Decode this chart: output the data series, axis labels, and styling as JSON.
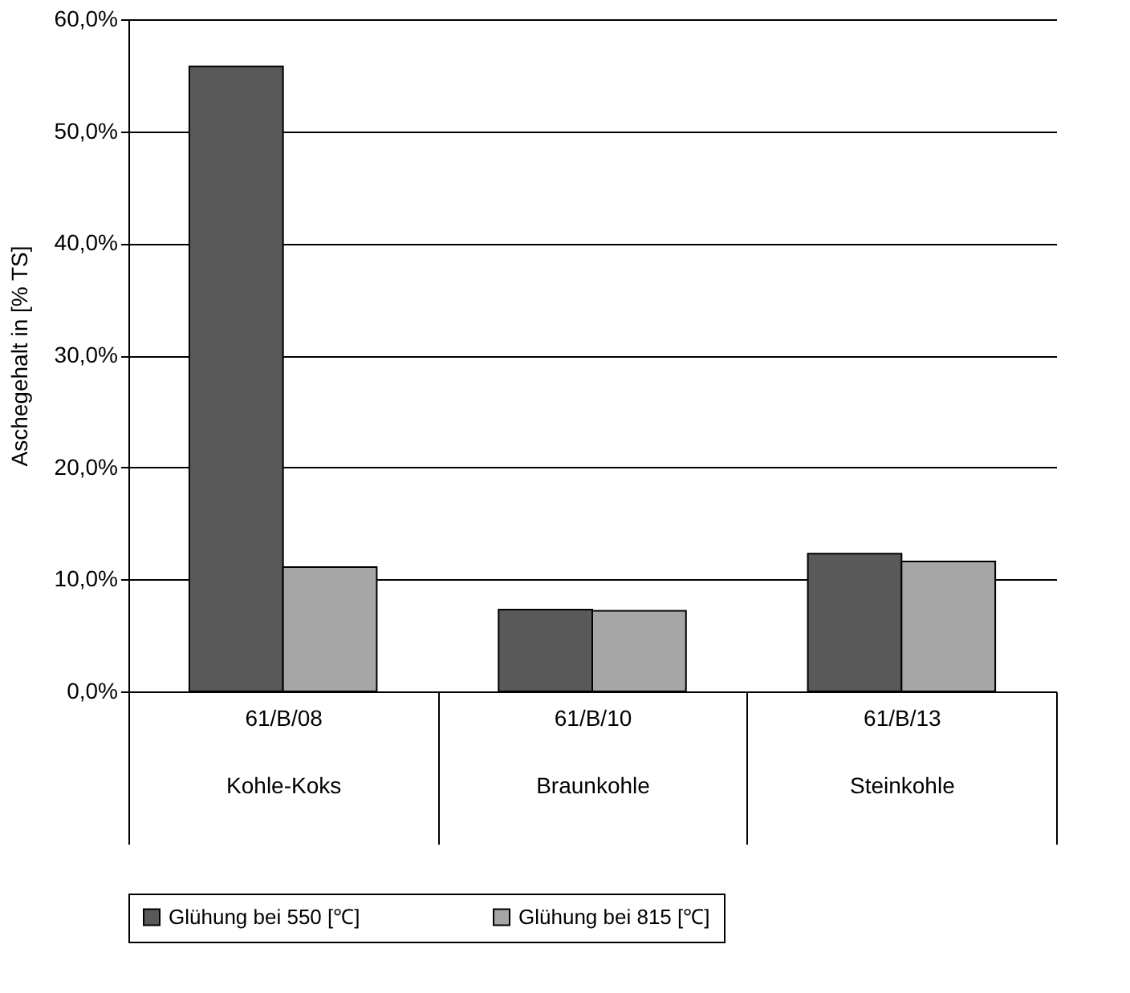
{
  "chart_data": {
    "type": "bar",
    "ylabel": "Aschegehalt in [% TS]",
    "categories": [
      "61/B/08\nKohle-Koks",
      "61/B/10\nBraunkohle",
      "61/B/13\nSteinkohle"
    ],
    "series": [
      {
        "name": "Glühung bei 550 [℃]",
        "color": "#595959",
        "values": [
          55.8,
          7.3,
          12.3
        ]
      },
      {
        "name": "Glühung bei 815 [℃]",
        "color": "#a6a6a6",
        "values": [
          11.1,
          7.2,
          11.6
        ]
      }
    ],
    "ylim": [
      0,
      60
    ],
    "yticks": [
      {
        "value": 0,
        "label": "0,0%"
      },
      {
        "value": 10,
        "label": "10,0%"
      },
      {
        "value": 20,
        "label": "20,0%"
      },
      {
        "value": 30,
        "label": "30,0%"
      },
      {
        "value": 40,
        "label": "40,0%"
      },
      {
        "value": 50,
        "label": "50,0%"
      },
      {
        "value": 60,
        "label": "60,0%"
      }
    ],
    "grid": "y",
    "legend": "bottom"
  }
}
